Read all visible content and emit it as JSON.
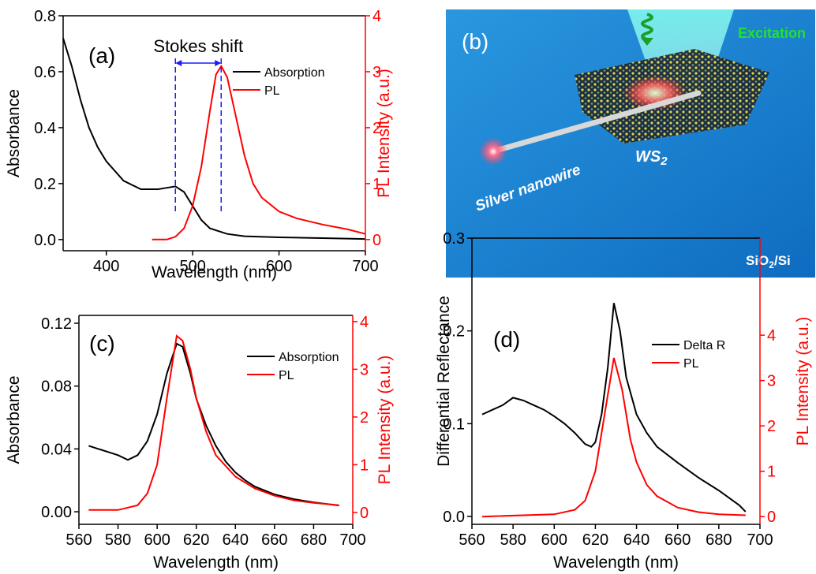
{
  "chart_data": [
    {
      "type": "line",
      "panel_label": "(a)",
      "annotation": "Stokes shift",
      "marker_lines": [
        480,
        533
      ],
      "marker_color": "#1a1aff",
      "x_label": "Wavelength (nm)",
      "y_label": "Absorbance",
      "y2_label": "PL Intensity (a.u.)",
      "legend": "upper right",
      "xlim": [
        350,
        700
      ],
      "xticks": [
        400,
        500,
        600,
        700
      ],
      "ylim": [
        -0.04,
        0.8
      ],
      "yticks": [
        {
          "value": 0,
          "label": "0.0"
        },
        0.2,
        0.4,
        0.6,
        0.8
      ],
      "y2lim": [
        -0.2,
        4
      ],
      "y2ticks": [
        0,
        1,
        2,
        3,
        4
      ],
      "series": [
        {
          "name": "Absorption",
          "color": "#000000",
          "axis": "y",
          "x": [
            350,
            360,
            370,
            380,
            390,
            400,
            420,
            440,
            460,
            470,
            480,
            490,
            500,
            510,
            520,
            540,
            560,
            600,
            650,
            700
          ],
          "values": [
            0.72,
            0.62,
            0.5,
            0.4,
            0.33,
            0.28,
            0.21,
            0.18,
            0.18,
            0.185,
            0.19,
            0.17,
            0.12,
            0.07,
            0.04,
            0.02,
            0.012,
            0.008,
            0.005,
            0.002
          ]
        },
        {
          "name": "PL",
          "color": "#ff0000",
          "axis": "y2",
          "x": [
            453,
            470,
            480,
            490,
            500,
            510,
            520,
            527,
            533,
            540,
            550,
            560,
            570,
            580,
            600,
            620,
            650,
            680,
            700
          ],
          "values": [
            0,
            0,
            0.05,
            0.2,
            0.6,
            1.3,
            2.3,
            2.95,
            3.1,
            2.9,
            2.2,
            1.5,
            1.0,
            0.75,
            0.5,
            0.38,
            0.27,
            0.18,
            0.1
          ]
        }
      ]
    },
    {
      "type": "line",
      "panel_label": "(c)",
      "x_label": "Wavelength (nm)",
      "y_label": "Absorbance",
      "y2_label": "PL Intensity (a.u.)",
      "legend": "upper right",
      "xlim": [
        560,
        700
      ],
      "xticks": [
        560,
        580,
        600,
        620,
        640,
        660,
        680,
        700
      ],
      "ylim": [
        -0.008,
        0.125
      ],
      "yticks": [
        {
          "value": 0,
          "label": "0.00"
        },
        {
          "value": 0.04,
          "label": "0.04"
        },
        {
          "value": 0.08,
          "label": "0.08"
        },
        {
          "value": 0.12,
          "label": "0.12"
        }
      ],
      "y2lim": [
        -0.25,
        4.13
      ],
      "y2ticks": [
        0,
        1,
        2,
        3,
        4
      ],
      "series": [
        {
          "name": "Absorption",
          "color": "#000000",
          "axis": "y",
          "x": [
            565,
            570,
            575,
            580,
            585,
            590,
            595,
            600,
            605,
            610,
            613,
            617,
            620,
            625,
            630,
            635,
            640,
            645,
            650,
            660,
            670,
            680,
            693
          ],
          "values": [
            0.042,
            0.04,
            0.038,
            0.036,
            0.033,
            0.036,
            0.045,
            0.062,
            0.088,
            0.107,
            0.105,
            0.088,
            0.072,
            0.055,
            0.042,
            0.032,
            0.025,
            0.02,
            0.016,
            0.011,
            0.008,
            0.006,
            0.004
          ]
        },
        {
          "name": "PL",
          "color": "#ff0000",
          "axis": "y2",
          "x": [
            565,
            580,
            590,
            595,
            600,
            605,
            610,
            613,
            617,
            620,
            625,
            630,
            640,
            650,
            660,
            670,
            680,
            693
          ],
          "values": [
            0.05,
            0.05,
            0.15,
            0.4,
            1.0,
            2.4,
            3.7,
            3.6,
            3.0,
            2.4,
            1.7,
            1.2,
            0.75,
            0.5,
            0.35,
            0.25,
            0.2,
            0.15
          ]
        }
      ]
    },
    {
      "type": "line",
      "panel_label": "(d)",
      "x_label": "Wavelength (nm)",
      "y_label": "Differential Reflectance",
      "y2_label": "PL Intensity (a.u.)",
      "legend": "upper right",
      "xlim": [
        560,
        700
      ],
      "xticks": [
        560,
        580,
        600,
        620,
        640,
        660,
        680,
        700
      ],
      "ylim": [
        -0.0085,
        0.3
      ],
      "yticks": [
        {
          "value": 0,
          "label": "0.0"
        },
        0.1,
        0.2,
        0.3
      ],
      "y2lim": [
        -0.17,
        6.14
      ],
      "y2ticks": [
        0,
        1,
        2,
        3,
        4
      ],
      "series": [
        {
          "name": "Delta R",
          "color": "#000000",
          "axis": "y",
          "x": [
            565,
            570,
            575,
            580,
            585,
            590,
            595,
            600,
            605,
            610,
            615,
            618,
            620,
            623,
            626,
            629,
            632,
            635,
            640,
            645,
            650,
            660,
            670,
            680,
            690,
            693
          ],
          "values": [
            0.11,
            0.115,
            0.12,
            0.128,
            0.125,
            0.12,
            0.115,
            0.108,
            0.1,
            0.09,
            0.078,
            0.075,
            0.08,
            0.11,
            0.16,
            0.23,
            0.2,
            0.15,
            0.11,
            0.09,
            0.075,
            0.058,
            0.042,
            0.028,
            0.012,
            0.005
          ]
        },
        {
          "name": "PL",
          "color": "#ff0000",
          "axis": "y2",
          "x": [
            565,
            600,
            610,
            615,
            620,
            625,
            629,
            633,
            637,
            640,
            645,
            650,
            660,
            670,
            680,
            693
          ],
          "values": [
            0,
            0.05,
            0.15,
            0.35,
            1.0,
            2.4,
            3.5,
            2.8,
            1.7,
            1.2,
            0.7,
            0.45,
            0.2,
            0.1,
            0.05,
            0.03
          ]
        }
      ]
    }
  ],
  "illustration": {
    "label": "(b)",
    "excitation": "Excitation",
    "nanowire": "Silver nanowire",
    "material": [
      "WS",
      "2"
    ],
    "substrate": [
      "SiO",
      "2",
      "/Si"
    ]
  }
}
